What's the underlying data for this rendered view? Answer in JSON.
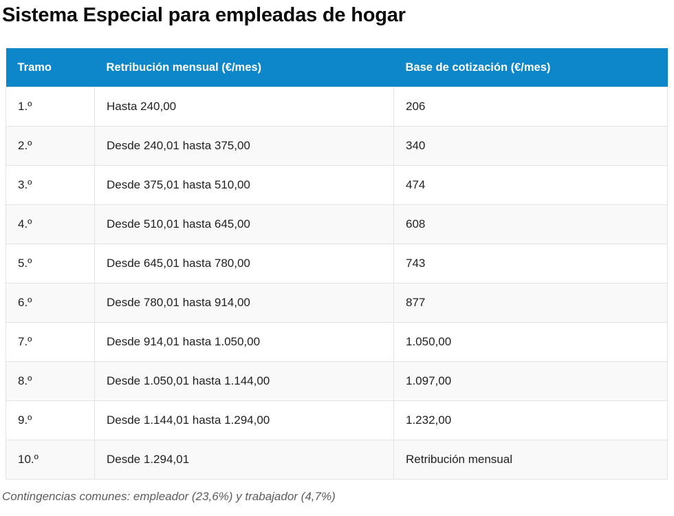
{
  "page": {
    "title": "Sistema Especial para empleadas de hogar"
  },
  "chart_data": {
    "type": "table",
    "title": "Sistema Especial para empleadas de hogar",
    "columns": [
      "Tramo",
      "Retribución mensual (€/mes)",
      "Base de cotización (€/mes)"
    ],
    "rows": [
      [
        "1.º",
        "Hasta 240,00",
        "206"
      ],
      [
        "2.º",
        "Desde 240,01 hasta 375,00",
        "340"
      ],
      [
        "3.º",
        "Desde 375,01 hasta 510,00",
        "474"
      ],
      [
        "4.º",
        "Desde 510,01 hasta 645,00",
        "608"
      ],
      [
        "5.º",
        "Desde 645,01 hasta 780,00",
        "743"
      ],
      [
        "6.º",
        "Desde 780,01 hasta 914,00",
        "877"
      ],
      [
        "7.º",
        "Desde 914,01 hasta 1.050,00",
        "1.050,00"
      ],
      [
        "8.º",
        "Desde 1.050,01 hasta 1.144,00",
        "1.097,00"
      ],
      [
        "9.º",
        "Desde 1.144,01 hasta 1.294,00",
        "1.232,00"
      ],
      [
        "10.º",
        "Desde 1.294,01",
        "Retribución mensual"
      ]
    ],
    "footnote": "Contingencias comunes: empleador (23,6%) y trabajador (4,7%)"
  },
  "colors": {
    "header_bg": "#0e87ca",
    "row_alt_bg": "#f9f9f9",
    "border": "#e3e3e3",
    "title_color": "#0b0b0b",
    "body_text": "#1f1f1f",
    "footnote_color": "#5c5c5c"
  }
}
